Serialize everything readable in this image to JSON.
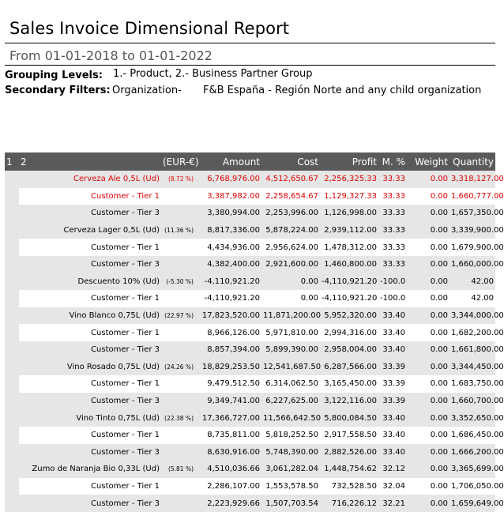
{
  "report": {
    "title": "Sales Invoice Dimensional Report",
    "subtitle": "From 01-01-2018 to 01-01-2022",
    "grouping_label": "Grouping Levels:",
    "grouping_value": "1.- Product, 2.- Business Partner Group",
    "filters_label": "Secondary Filters:",
    "filters_key": "Organization-",
    "filters_value": "F&B España - Región Norte and any child organization"
  },
  "table": {
    "headers": {
      "level1": "1",
      "level2": "2",
      "currency": "(EUR-€)",
      "amount": "Amount",
      "cost": "Cost",
      "profit": "Profit",
      "margin": "M. %",
      "weight": "Weight",
      "quantity": "Quantity"
    },
    "groups": [
      {
        "name": "Cerveza Ale 0,5L (Ud)",
        "pct": "(8.72 %)",
        "amount": "6,768,976.00",
        "cost": "4,512,650.67",
        "profit": "2,256,325.33",
        "margin": "33.33",
        "weight": "0.00",
        "quantity": "3,318,127.00",
        "children": [
          {
            "name": "Customer - Tier 1",
            "amount": "3,387,982.00",
            "cost": "2,258,654.67",
            "profit": "1,129,327.33",
            "margin": "33.33",
            "weight": "0.00",
            "quantity": "1,660,777.00"
          },
          {
            "name": "Customer - Tier 3",
            "amount": "3,380,994.00",
            "cost": "2,253,996.00",
            "profit": "1,126,998.00",
            "margin": "33.33",
            "weight": "0.00",
            "quantity": "1,657,350.00"
          }
        ]
      },
      {
        "name": "Cerveza Lager 0,5L (Ud)",
        "pct": "(11.36 %)",
        "amount": "8,817,336.00",
        "cost": "5,878,224.00",
        "profit": "2,939,112.00",
        "margin": "33.33",
        "weight": "0.00",
        "quantity": "3,339,900.00",
        "children": [
          {
            "name": "Customer - Tier 1",
            "amount": "4,434,936.00",
            "cost": "2,956,624.00",
            "profit": "1,478,312.00",
            "margin": "33.33",
            "weight": "0.00",
            "quantity": "1,679,900.00"
          },
          {
            "name": "Customer - Tier 3",
            "amount": "4,382,400.00",
            "cost": "2,921,600.00",
            "profit": "1,460,800.00",
            "margin": "33.33",
            "weight": "0.00",
            "quantity": "1,660,000.00"
          }
        ]
      },
      {
        "name": "Descuento 10% (Ud)",
        "pct": "(-5.30 %)",
        "amount": "-4,110,921.20",
        "cost": "0.00",
        "profit": "-4,110,921.20",
        "margin": "-100.0",
        "weight": "0.00",
        "quantity": "42.00",
        "children": [
          {
            "name": "Customer - Tier 1",
            "amount": "-4,110,921.20",
            "cost": "0.00",
            "profit": "-4,110,921.20",
            "margin": "-100.0",
            "weight": "0.00",
            "quantity": "42.00"
          }
        ]
      },
      {
        "name": "Vino Blanco 0,75L (Ud)",
        "pct": "(22.97 %)",
        "amount": "17,823,520.00",
        "cost": "11,871,200.00",
        "profit": "5,952,320.00",
        "margin": "33.40",
        "weight": "0.00",
        "quantity": "3,344,000.00",
        "children": [
          {
            "name": "Customer - Tier 1",
            "amount": "8,966,126.00",
            "cost": "5,971,810.00",
            "profit": "2,994,316.00",
            "margin": "33.40",
            "weight": "0.00",
            "quantity": "1,682,200.00"
          },
          {
            "name": "Customer - Tier 3",
            "amount": "8,857,394.00",
            "cost": "5,899,390.00",
            "profit": "2,958,004.00",
            "margin": "33.40",
            "weight": "0.00",
            "quantity": "1,661,800.00"
          }
        ]
      },
      {
        "name": "Vino Rosado 0,75L (Ud)",
        "pct": "(24.26 %)",
        "amount": "18,829,253.50",
        "cost": "12,541,687.50",
        "profit": "6,287,566.00",
        "margin": "33.39",
        "weight": "0.00",
        "quantity": "3,344,450.00",
        "children": [
          {
            "name": "Customer - Tier 1",
            "amount": "9,479,512.50",
            "cost": "6,314,062.50",
            "profit": "3,165,450.00",
            "margin": "33.39",
            "weight": "0.00",
            "quantity": "1,683,750.00"
          },
          {
            "name": "Customer - Tier 3",
            "amount": "9,349,741.00",
            "cost": "6,227,625.00",
            "profit": "3,122,116.00",
            "margin": "33.39",
            "weight": "0.00",
            "quantity": "1,660,700.00"
          }
        ]
      },
      {
        "name": "Vino Tinto 0,75L (Ud)",
        "pct": "(22.38 %)",
        "amount": "17,366,727.00",
        "cost": "11,566,642.50",
        "profit": "5,800,084.50",
        "margin": "33.40",
        "weight": "0.00",
        "quantity": "3,352,650.00",
        "children": [
          {
            "name": "Customer - Tier 1",
            "amount": "8,735,811.00",
            "cost": "5,818,252.50",
            "profit": "2,917,558.50",
            "margin": "33.40",
            "weight": "0.00",
            "quantity": "1,686,450.00"
          },
          {
            "name": "Customer - Tier 3",
            "amount": "8,630,916.00",
            "cost": "5,748,390.00",
            "profit": "2,882,526.00",
            "margin": "33.40",
            "weight": "0.00",
            "quantity": "1,666,200.00"
          }
        ]
      },
      {
        "name": "Zumo de Naranja Bio 0,33L (Ud)",
        "pct": "(5.81 %)",
        "amount": "4,510,036.66",
        "cost": "3,061,282.04",
        "profit": "1,448,754.62",
        "margin": "32.12",
        "weight": "0.00",
        "quantity": "3,365,699.00",
        "children": [
          {
            "name": "Customer - Tier 1",
            "amount": "2,286,107.00",
            "cost": "1,553,578.50",
            "profit": "732,528.50",
            "margin": "32.04",
            "weight": "0.00",
            "quantity": "1,706,050.00"
          },
          {
            "name": "Customer - Tier 3",
            "amount": "2,223,929.66",
            "cost": "1,507,703.54",
            "profit": "716,226.12",
            "margin": "32.21",
            "weight": "0.00",
            "quantity": "1,659,649.00"
          }
        ]
      }
    ]
  },
  "colors": {
    "header_bg": "#5a5a5a",
    "row_gray": "#e6e6e6",
    "highlight": "#e00000"
  }
}
